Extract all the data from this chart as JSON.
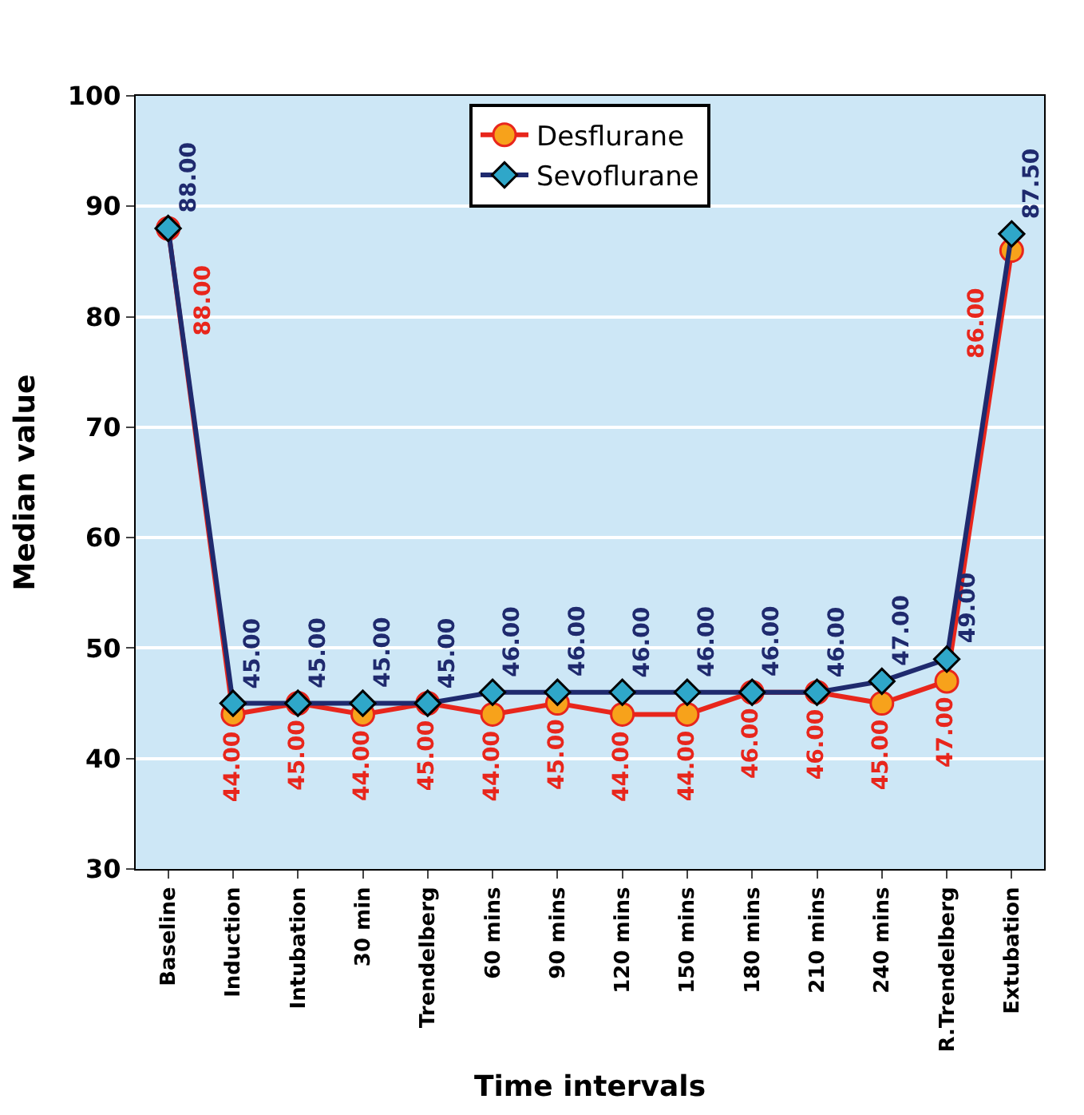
{
  "chart_data": {
    "type": "line",
    "xlabel": "Time intervals",
    "ylabel": "Median value",
    "categories": [
      "Baseline",
      "Induction",
      "Intubation",
      "30 min",
      "Trendelberg",
      "60 mins",
      "90 mins",
      "120 mins",
      "150 mins",
      "180 mins",
      "210 mins",
      "240 mins",
      "R.Trendelberg",
      "Extubation"
    ],
    "series": [
      {
        "name": "Desflurane",
        "color": "#e8261c",
        "marker": "circle",
        "values": [
          88,
          44,
          45,
          44,
          45,
          44,
          45,
          44,
          44,
          46,
          46,
          45,
          47,
          86
        ],
        "value_labels": [
          "88.00",
          "44.00",
          "45.00",
          "44.00",
          "45.00",
          "44.00",
          "45.00",
          "44.00",
          "44.00",
          "46.00",
          "46.00",
          "45.00",
          "47.00",
          "86.00"
        ]
      },
      {
        "name": "Sevoflurane",
        "color": "#1f2a6e",
        "marker": "diamond",
        "values": [
          88,
          45,
          45,
          45,
          45,
          46,
          46,
          46,
          46,
          46,
          46,
          47,
          49,
          87.5
        ],
        "value_labels": [
          "88.00",
          "45.00",
          "45.00",
          "45.00",
          "45.00",
          "46.00",
          "46.00",
          "46.00",
          "46.00",
          "46.00",
          "46.00",
          "47.00",
          "49.00",
          "87.50"
        ]
      }
    ],
    "ylim": [
      30,
      100
    ],
    "yticks": [
      30,
      40,
      50,
      60,
      70,
      80,
      90,
      100
    ],
    "grid": "y",
    "legend": "top"
  }
}
